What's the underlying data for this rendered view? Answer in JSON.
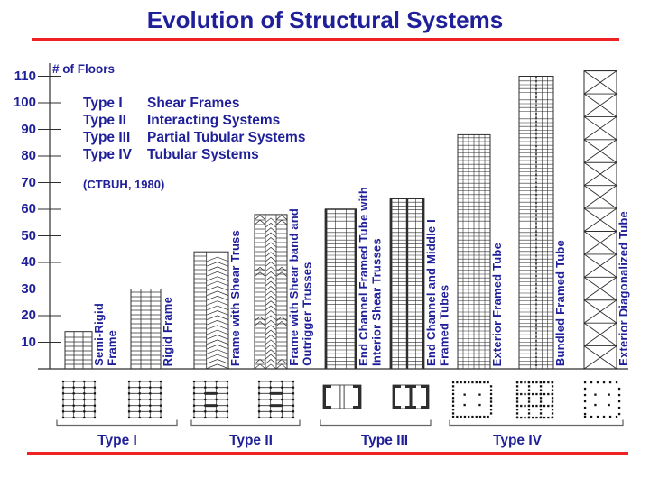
{
  "title": "Evolution of Structural Systems",
  "axis": {
    "label": "# of Floors",
    "ticks": [
      110,
      100,
      90,
      80,
      70,
      60,
      50,
      40,
      30,
      20,
      10
    ]
  },
  "legend": {
    "rows": [
      {
        "term": "Type I",
        "desc": "Shear Frames"
      },
      {
        "term": "Type II",
        "desc": "Interacting Systems"
      },
      {
        "term": "Type III",
        "desc": "Partial Tubular Systems"
      },
      {
        "term": "Type IV",
        "desc": "Tubular Systems"
      }
    ],
    "note": "(CTBUH, 1980)"
  },
  "chart_data": {
    "type": "bar",
    "title": "Evolution of Structural Systems",
    "xlabel": "",
    "ylabel": "# of Floors",
    "ylim": [
      0,
      115
    ],
    "grid": false,
    "categories": [
      "Semi-Rigid Frame",
      "Rigid Frame",
      "Frame with Shear Truss",
      "Frame with Shear band and Outrigger Trusses",
      "End Channel Framed Tube with Interior Shear Trusses",
      "End Channel and Middle I Framed Tubes",
      "Exterior Framed Tube",
      "Bundled Framed Tube",
      "Exterior Diagonalized Tube"
    ],
    "values": [
      14,
      30,
      44,
      58,
      60,
      64,
      88,
      110,
      112
    ],
    "groups": [
      {
        "type": "Type I",
        "bars": [
          "Semi-Rigid Frame",
          "Rigid Frame"
        ]
      },
      {
        "type": "Type II",
        "bars": [
          "Frame with Shear Truss",
          "Frame with Shear band and Outrigger Trusses"
        ]
      },
      {
        "type": "Type III",
        "bars": [
          "End Channel Framed Tube with Interior Shear Trusses",
          "End Channel and Middle I Framed Tubes"
        ]
      },
      {
        "type": "Type IV",
        "bars": [
          "Exterior Framed Tube",
          "Bundled Framed Tube",
          "Exterior Diagonalized Tube"
        ]
      }
    ]
  },
  "buildings": [
    {
      "label": "Semi-Rigid\nFrame",
      "pattern": "shear-frame-grid"
    },
    {
      "label": "Rigid Frame",
      "pattern": "shear-frame-grid"
    },
    {
      "label": "Frame with Shear Truss",
      "pattern": "shear-truss"
    },
    {
      "label": "Frame with Shear band and\nOutrigger Trusses",
      "pattern": "shear-band-outrigger"
    },
    {
      "label": "End Channel Framed Tube with\nInterior Shear Trusses",
      "pattern": "end-channel-tube"
    },
    {
      "label": "End Channel and Middle I\nFramed Tubes",
      "pattern": "channel-and-I-tube"
    },
    {
      "label": "Exterior Framed Tube",
      "pattern": "framed-tube-grid"
    },
    {
      "label": "Bundled Framed Tube",
      "pattern": "bundled-tube-grid"
    },
    {
      "label": "Exterior Diagonalized Tube",
      "pattern": "diagonalized-x-brace"
    }
  ],
  "type_groups": [
    {
      "label": "Type I",
      "plan_icons": [
        "rigid-frame-plan",
        "rigid-frame-plan"
      ]
    },
    {
      "label": "Type II",
      "plan_icons": [
        "shear-band-frame-plan",
        "shear-band-frame-plan"
      ]
    },
    {
      "label": "Type III",
      "plan_icons": [
        "end-channel-tube-plan",
        "channel-and-I-tube-plan"
      ]
    },
    {
      "label": "Type IV",
      "plan_icons": [
        "framed-tube-plan",
        "bundled-tube-plan",
        "diagonalized-tube-plan"
      ]
    }
  ],
  "colors": {
    "navy": "#1f1f99",
    "red": "#ee2222",
    "structure": "#2e2e2e"
  }
}
